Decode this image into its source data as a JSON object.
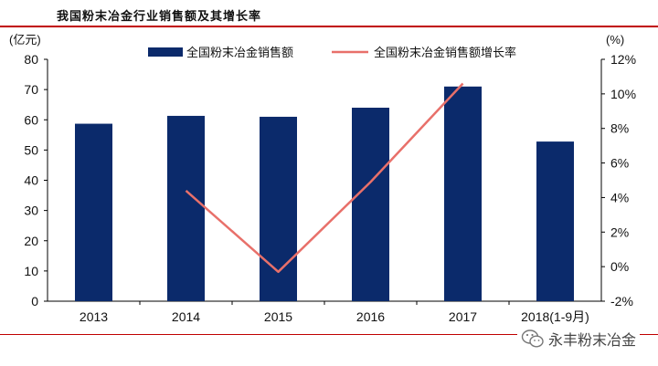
{
  "title": "我国粉末冶金行业销售额及其增长率",
  "watermark": "永丰粉末冶金",
  "chart_data": {
    "type": "bar",
    "categories": [
      "2013",
      "2014",
      "2015",
      "2016",
      "2017",
      "2018(1-9月)"
    ],
    "series": [
      {
        "name": "全国粉末冶金销售额",
        "type": "bar",
        "axis": "left",
        "color": "#0b2a6b",
        "values": [
          58.7,
          61.3,
          61.0,
          64.0,
          71.0,
          52.8
        ]
      },
      {
        "name": "全国粉末冶金销售额增长率",
        "type": "line",
        "axis": "right",
        "color": "#e8706a",
        "values": [
          null,
          4.4,
          -0.3,
          4.9,
          10.6,
          null
        ]
      }
    ],
    "ylabel_left": "(亿元)",
    "ylabel_right": "(%)",
    "ylim_left": [
      0,
      80
    ],
    "yticks_left": [
      "0",
      "10",
      "20",
      "30",
      "40",
      "50",
      "60",
      "70",
      "80"
    ],
    "ylim_right": [
      -2,
      12
    ],
    "yticks_right": [
      "-2%",
      "0%",
      "2%",
      "4%",
      "6%",
      "8%",
      "10%",
      "12%"
    ],
    "legend_position": "top",
    "grid": false
  }
}
